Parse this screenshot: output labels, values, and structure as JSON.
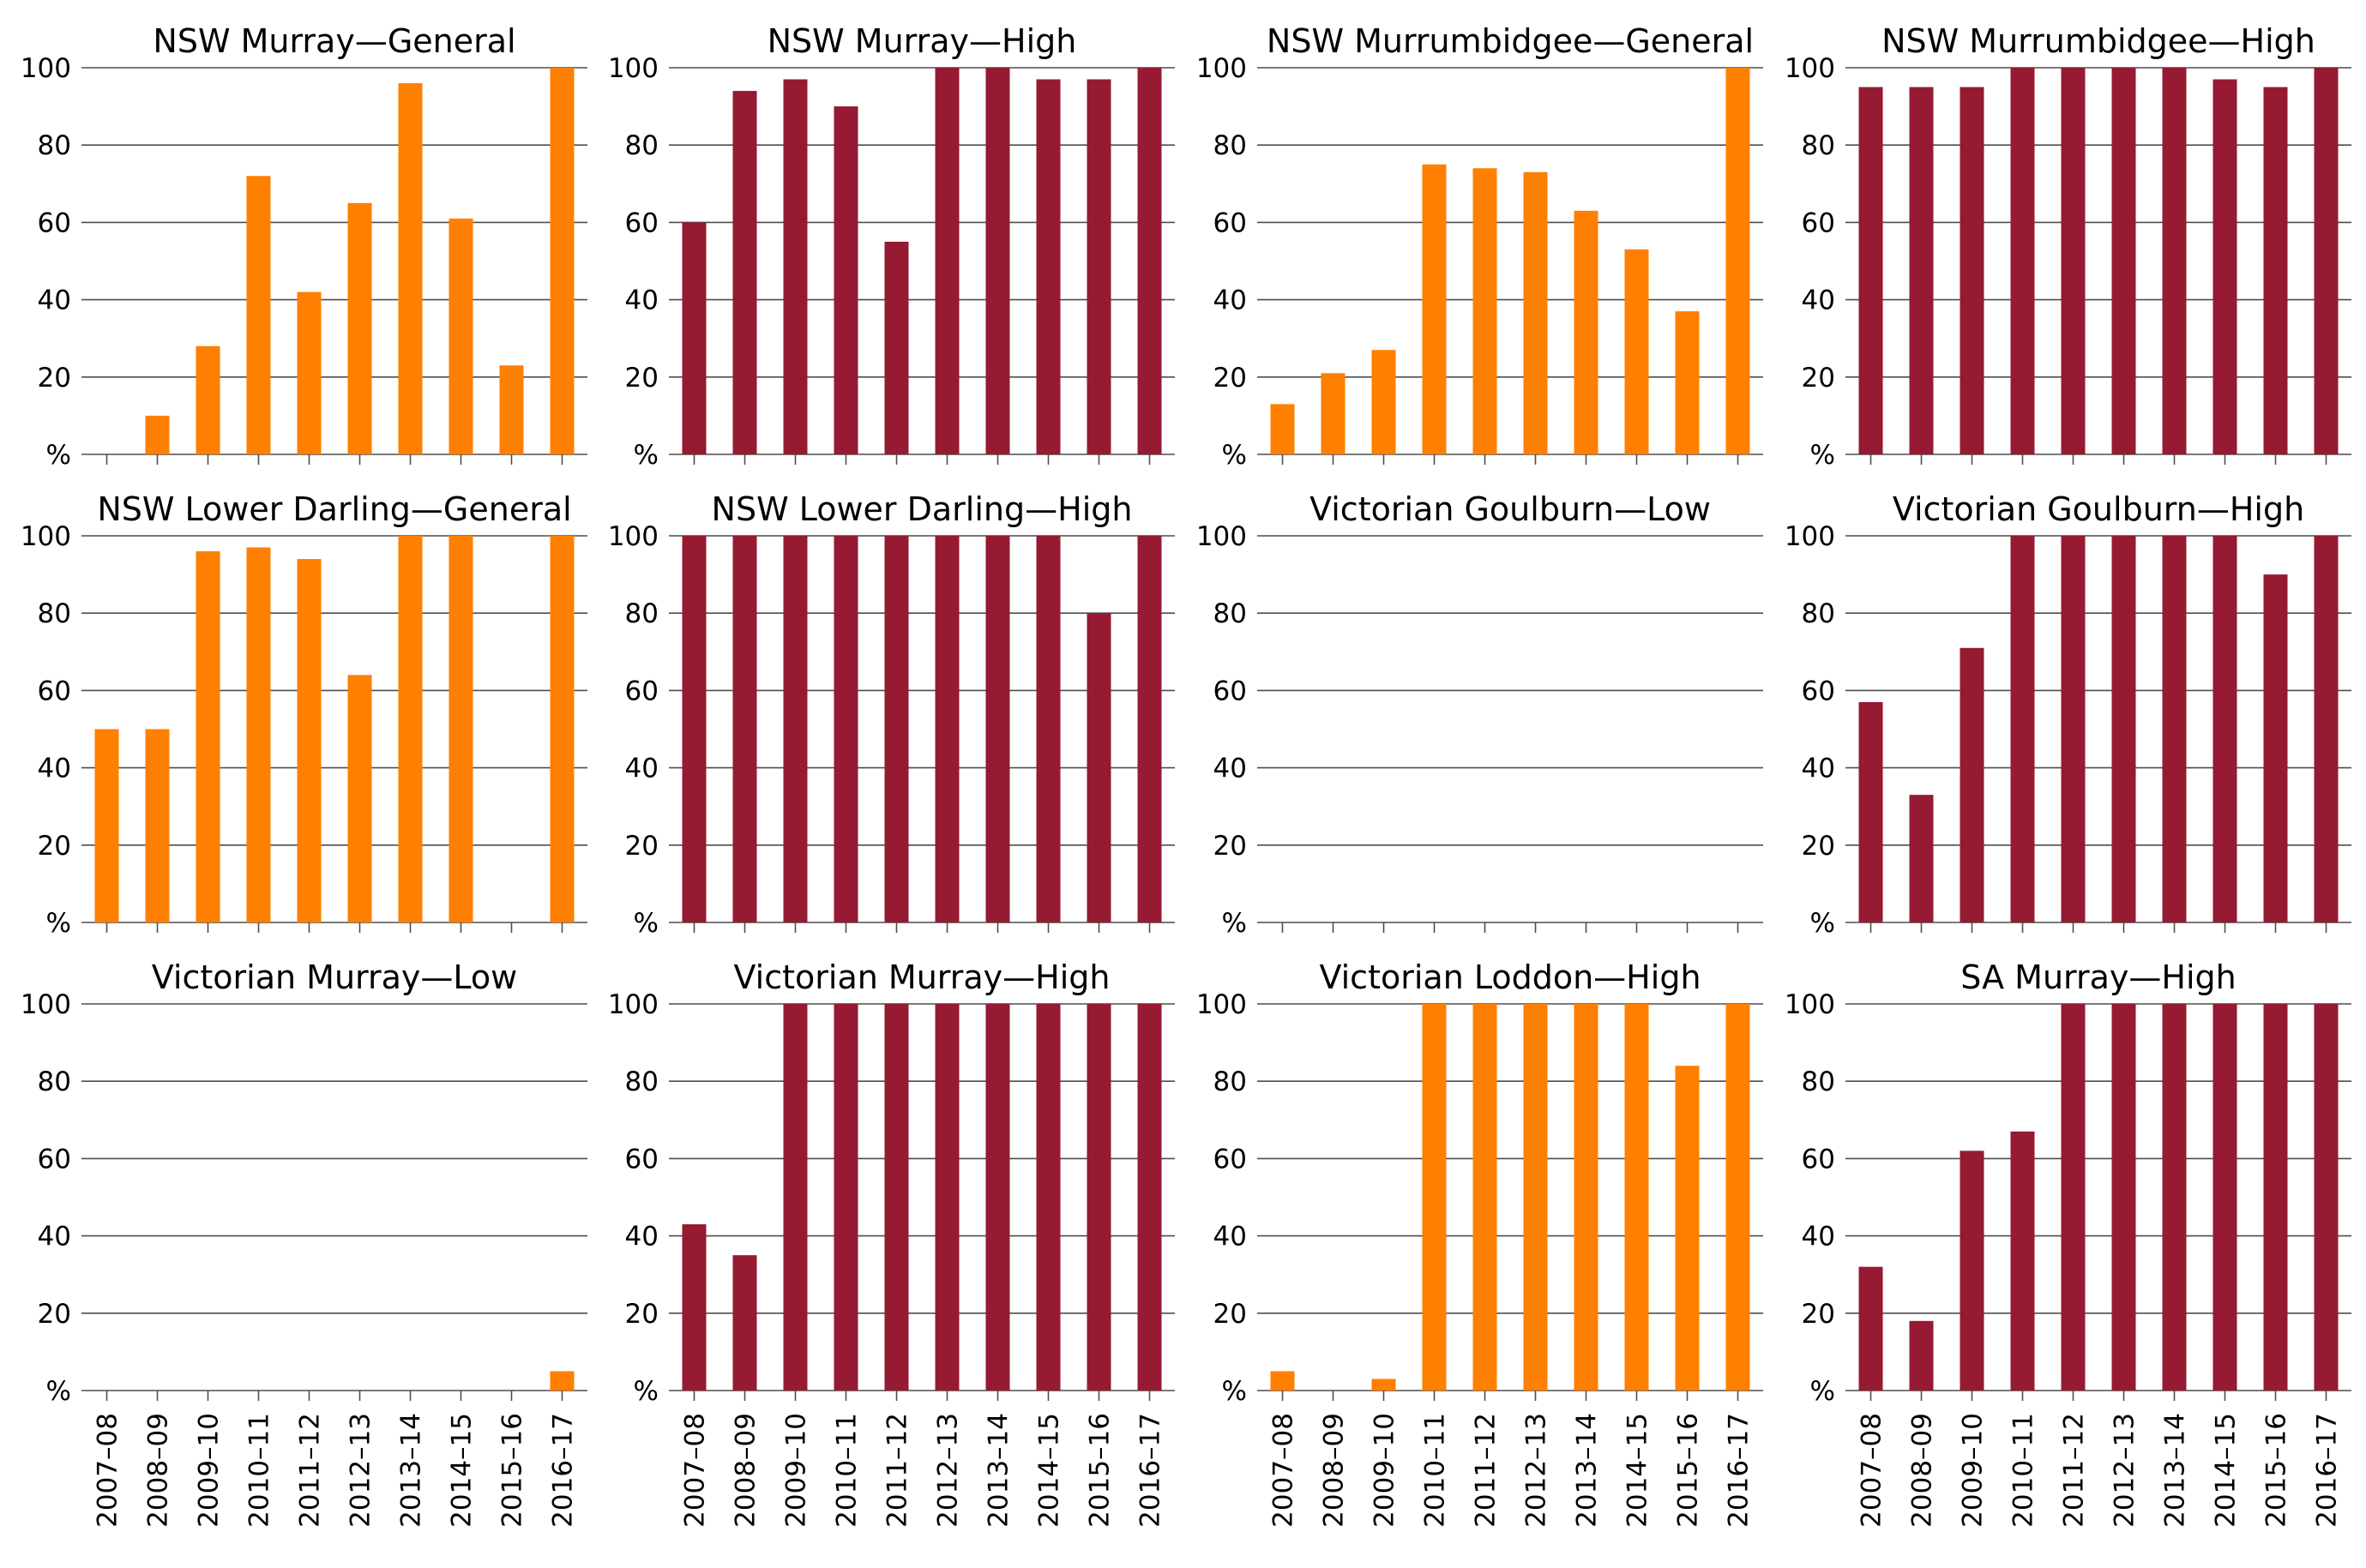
{
  "colors": {
    "general": "#FF7F00",
    "high": "#951A32"
  },
  "chart_data": [
    {
      "type": "bar",
      "title": "NSW Murray—General",
      "categories": [
        "2007–08",
        "2008–09",
        "2009–10",
        "2010–11",
        "2011–12",
        "2012–13",
        "2013–14",
        "2014–15",
        "2015–16",
        "2016–17"
      ],
      "values": [
        0,
        10,
        28,
        72,
        42,
        65,
        96,
        61,
        23,
        100
      ],
      "color": "#FF7F00",
      "yticks": [
        "%",
        "20",
        "40",
        "60",
        "80",
        "100"
      ],
      "ylim": [
        0,
        100
      ]
    },
    {
      "type": "bar",
      "title": "NSW Murray—High",
      "categories": [
        "2007–08",
        "2008–09",
        "2009–10",
        "2010–11",
        "2011–12",
        "2012–13",
        "2013–14",
        "2014–15",
        "2015–16",
        "2016–17"
      ],
      "values": [
        60,
        94,
        97,
        90,
        55,
        100,
        100,
        97,
        97,
        100
      ],
      "color": "#951A32",
      "yticks": [
        "%",
        "20",
        "40",
        "60",
        "80",
        "100"
      ],
      "ylim": [
        0,
        100
      ]
    },
    {
      "type": "bar",
      "title": "NSW Murrumbidgee—General",
      "categories": [
        "2007–08",
        "2008–09",
        "2009–10",
        "2010–11",
        "2011–12",
        "2012–13",
        "2013–14",
        "2014–15",
        "2015–16",
        "2016–17"
      ],
      "values": [
        13,
        21,
        27,
        75,
        74,
        73,
        63,
        53,
        37,
        100
      ],
      "color": "#FF7F00",
      "yticks": [
        "%",
        "20",
        "40",
        "60",
        "80",
        "100"
      ],
      "ylim": [
        0,
        100
      ]
    },
    {
      "type": "bar",
      "title": "NSW Murrumbidgee—High",
      "categories": [
        "2007–08",
        "2008–09",
        "2009–10",
        "2010–11",
        "2011–12",
        "2012–13",
        "2013–14",
        "2014–15",
        "2015–16",
        "2016–17"
      ],
      "values": [
        95,
        95,
        95,
        100,
        100,
        100,
        100,
        97,
        95,
        100
      ],
      "color": "#951A32",
      "yticks": [
        "%",
        "20",
        "40",
        "60",
        "80",
        "100"
      ],
      "ylim": [
        0,
        100
      ]
    },
    {
      "type": "bar",
      "title": "NSW Lower Darling—General",
      "categories": [
        "2007–08",
        "2008–09",
        "2009–10",
        "2010–11",
        "2011–12",
        "2012–13",
        "2013–14",
        "2014–15",
        "2015–16",
        "2016–17"
      ],
      "values": [
        50,
        50,
        96,
        97,
        94,
        64,
        100,
        100,
        0,
        100
      ],
      "color": "#FF7F00",
      "yticks": [
        "%",
        "20",
        "40",
        "60",
        "80",
        "100"
      ],
      "ylim": [
        0,
        100
      ]
    },
    {
      "type": "bar",
      "title": "NSW Lower Darling—High",
      "categories": [
        "2007–08",
        "2008–09",
        "2009–10",
        "2010–11",
        "2011–12",
        "2012–13",
        "2013–14",
        "2014–15",
        "2015–16",
        "2016–17"
      ],
      "values": [
        100,
        100,
        100,
        100,
        100,
        100,
        100,
        100,
        80,
        100
      ],
      "color": "#951A32",
      "yticks": [
        "%",
        "20",
        "40",
        "60",
        "80",
        "100"
      ],
      "ylim": [
        0,
        100
      ]
    },
    {
      "type": "bar",
      "title": "Victorian Goulburn—Low",
      "categories": [
        "2007–08",
        "2008–09",
        "2009–10",
        "2010–11",
        "2011–12",
        "2012–13",
        "2013–14",
        "2014–15",
        "2015–16",
        "2016–17"
      ],
      "values": [
        0,
        0,
        0,
        0,
        0,
        0,
        0,
        0,
        0,
        0
      ],
      "color": "#FF7F00",
      "yticks": [
        "%",
        "20",
        "40",
        "60",
        "80",
        "100"
      ],
      "ylim": [
        0,
        100
      ]
    },
    {
      "type": "bar",
      "title": "Victorian Goulburn—High",
      "categories": [
        "2007–08",
        "2008–09",
        "2009–10",
        "2010–11",
        "2011–12",
        "2012–13",
        "2013–14",
        "2014–15",
        "2015–16",
        "2016–17"
      ],
      "values": [
        57,
        33,
        71,
        100,
        100,
        100,
        100,
        100,
        90,
        100
      ],
      "color": "#951A32",
      "yticks": [
        "%",
        "20",
        "40",
        "60",
        "80",
        "100"
      ],
      "ylim": [
        0,
        100
      ]
    },
    {
      "type": "bar",
      "title": "Victorian Murray—Low",
      "categories": [
        "2007–08",
        "2008–09",
        "2009–10",
        "2010–11",
        "2011–12",
        "2012–13",
        "2013–14",
        "2014–15",
        "2015–16",
        "2016–17"
      ],
      "values": [
        0,
        0,
        0,
        0,
        0,
        0,
        0,
        0,
        0,
        5
      ],
      "color": "#FF7F00",
      "yticks": [
        "%",
        "20",
        "40",
        "60",
        "80",
        "100"
      ],
      "ylim": [
        0,
        100
      ]
    },
    {
      "type": "bar",
      "title": "Victorian Murray—High",
      "categories": [
        "2007–08",
        "2008–09",
        "2009–10",
        "2010–11",
        "2011–12",
        "2012–13",
        "2013–14",
        "2014–15",
        "2015–16",
        "2016–17"
      ],
      "values": [
        43,
        35,
        100,
        100,
        100,
        100,
        100,
        100,
        100,
        100
      ],
      "color": "#951A32",
      "yticks": [
        "%",
        "20",
        "40",
        "60",
        "80",
        "100"
      ],
      "ylim": [
        0,
        100
      ]
    },
    {
      "type": "bar",
      "title": "Victorian Loddon—High",
      "categories": [
        "2007–08",
        "2008–09",
        "2009–10",
        "2010–11",
        "2011–12",
        "2012–13",
        "2013–14",
        "2014–15",
        "2015–16",
        "2016–17"
      ],
      "values": [
        5,
        0,
        3,
        100,
        100,
        100,
        100,
        100,
        84,
        100
      ],
      "color": "#FF7F00",
      "yticks": [
        "%",
        "20",
        "40",
        "60",
        "80",
        "100"
      ],
      "ylim": [
        0,
        100
      ]
    },
    {
      "type": "bar",
      "title": "SA Murray—High",
      "categories": [
        "2007–08",
        "2008–09",
        "2009–10",
        "2010–11",
        "2011–12",
        "2012–13",
        "2013–14",
        "2014–15",
        "2015–16",
        "2016–17"
      ],
      "values": [
        32,
        18,
        62,
        67,
        100,
        100,
        100,
        100,
        100,
        100
      ],
      "color": "#951A32",
      "yticks": [
        "%",
        "20",
        "40",
        "60",
        "80",
        "100"
      ],
      "ylim": [
        0,
        100
      ]
    }
  ]
}
